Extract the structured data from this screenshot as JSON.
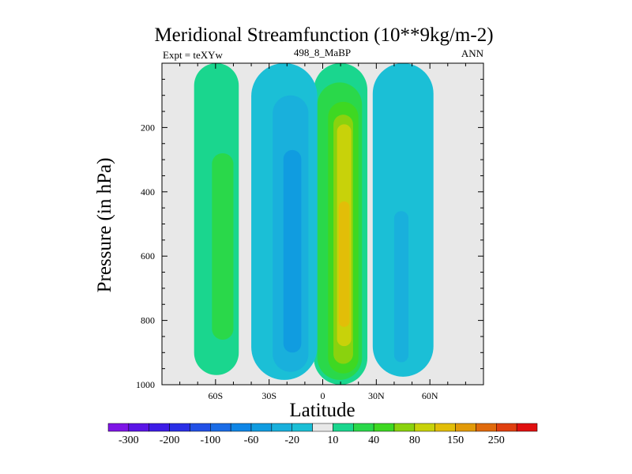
{
  "chart_data": {
    "type": "heatmap",
    "title": "Meridional Streamfunction (10**9kg/m-2)",
    "subtitle_left": "Expt = teXYw",
    "subtitle_center": "498_8_MaBP",
    "subtitle_right": "ANN",
    "xlabel": "Latitude",
    "ylabel": "Pressure (in hPa)",
    "xlim": [
      -90,
      90
    ],
    "ylim": [
      1000,
      0
    ],
    "y_reversed": true,
    "x_ticks": [
      {
        "value": -60,
        "label": "60S"
      },
      {
        "value": -30,
        "label": "30S"
      },
      {
        "value": 0,
        "label": "0"
      },
      {
        "value": 30,
        "label": "30N"
      },
      {
        "value": 60,
        "label": "60N"
      }
    ],
    "y_ticks": [
      {
        "value": 200,
        "label": "200"
      },
      {
        "value": 400,
        "label": "400"
      },
      {
        "value": 600,
        "label": "600"
      },
      {
        "value": 800,
        "label": "800"
      },
      {
        "value": 1000,
        "label": "1000"
      }
    ],
    "grid": false,
    "background_color": "#e8e8e8",
    "levels": [
      -300,
      -250,
      -200,
      -150,
      -100,
      -80,
      -60,
      -40,
      -20,
      -10,
      10,
      20,
      40,
      60,
      80,
      100,
      150,
      200,
      250,
      300
    ],
    "colorbar": {
      "colors": [
        "#7e15e6",
        "#5a15e6",
        "#3d1ce6",
        "#2a2fe6",
        "#2250e6",
        "#1a6ce6",
        "#0f86e6",
        "#109ce0",
        "#19b0dc",
        "#1bbfd6",
        "#e8e8e8",
        "#1ad68e",
        "#2ad84a",
        "#3ed822",
        "#8ad20e",
        "#c8d20a",
        "#e2be08",
        "#e29a08",
        "#e06a0c",
        "#e04010",
        "#e01010"
      ],
      "labels": [
        {
          "level": -300,
          "label": "-300"
        },
        {
          "level": -200,
          "label": "-200"
        },
        {
          "level": -100,
          "label": "-100"
        },
        {
          "level": -60,
          "label": "-60"
        },
        {
          "level": -20,
          "label": "-20"
        },
        {
          "level": 10,
          "label": "10"
        },
        {
          "level": 40,
          "label": "40"
        },
        {
          "level": 80,
          "label": "80"
        },
        {
          "level": 150,
          "label": "150"
        },
        {
          "level": 250,
          "label": "250"
        }
      ]
    },
    "cells": [
      {
        "name": "northern-hadley-outer",
        "lat_range": [
          -5,
          25
        ],
        "p_range": [
          0,
          1000
        ],
        "value": 15
      },
      {
        "name": "northern-hadley-20",
        "lat_range": [
          -3,
          22
        ],
        "p_range": [
          60,
          985
        ],
        "value": 25
      },
      {
        "name": "northern-hadley-40",
        "lat_range": [
          3,
          20
        ],
        "p_range": [
          120,
          965
        ],
        "value": 45
      },
      {
        "name": "northern-hadley-60",
        "lat_range": [
          6,
          17
        ],
        "p_range": [
          160,
          935
        ],
        "value": 65
      },
      {
        "name": "northern-hadley-80",
        "lat_range": [
          8,
          16
        ],
        "p_range": [
          190,
          880
        ],
        "value": 85
      },
      {
        "name": "northern-hadley-core",
        "lat_range": [
          9,
          15
        ],
        "p_range": [
          430,
          820
        ],
        "value": 110
      },
      {
        "name": "southern-hadley-outer",
        "lat_range": [
          -40,
          -3
        ],
        "p_range": [
          0,
          985
        ],
        "value": -15
      },
      {
        "name": "southern-hadley-20",
        "lat_range": [
          -28,
          -8
        ],
        "p_range": [
          100,
          960
        ],
        "value": -25
      },
      {
        "name": "southern-hadley-core",
        "lat_range": [
          -22,
          -12
        ],
        "p_range": [
          270,
          900
        ],
        "value": -45
      },
      {
        "name": "southern-ferrel-outer",
        "lat_range": [
          -72,
          -47
        ],
        "p_range": [
          0,
          970
        ],
        "value": 15
      },
      {
        "name": "southern-ferrel-core",
        "lat_range": [
          -62,
          -50
        ],
        "p_range": [
          280,
          860
        ],
        "value": 25
      },
      {
        "name": "northern-ferrel-outer",
        "lat_range": [
          28,
          62
        ],
        "p_range": [
          0,
          975
        ],
        "value": -15
      },
      {
        "name": "northern-ferrel-core",
        "lat_range": [
          40,
          48
        ],
        "p_range": [
          460,
          930
        ],
        "value": -25
      }
    ]
  }
}
